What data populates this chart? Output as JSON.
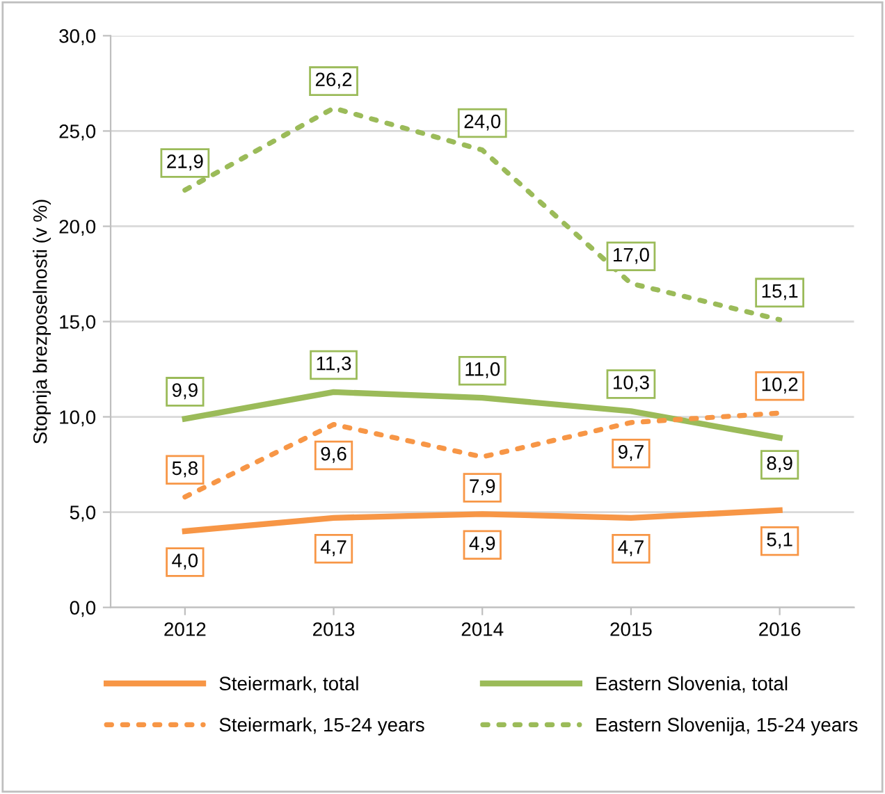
{
  "chart_data": {
    "type": "line",
    "ylabel": "Stopnja brezposelnosti (v %)",
    "categories": [
      "2012",
      "2013",
      "2014",
      "2015",
      "2016"
    ],
    "ylim": [
      0,
      30
    ],
    "yticks": [
      {
        "value": 0,
        "label": "0,0"
      },
      {
        "value": 5,
        "label": "5,0"
      },
      {
        "value": 10,
        "label": "10,0"
      },
      {
        "value": 15,
        "label": "15,0"
      },
      {
        "value": 20,
        "label": "20,0"
      },
      {
        "value": 25,
        "label": "25,0"
      },
      {
        "value": 30,
        "label": "30,0"
      }
    ],
    "grid": "y",
    "legend": "bottom",
    "marker": "none",
    "series": [
      {
        "name": "Steiermark, total",
        "color": "#f79646",
        "line_style": "solid",
        "values": [
          4.0,
          4.7,
          4.9,
          4.7,
          5.1
        ],
        "value_labels": [
          "4,0",
          "4,7",
          "4,9",
          "4,7",
          "5,1"
        ]
      },
      {
        "name": "Eastern Slovenia, total",
        "color": "#9bbb59",
        "line_style": "solid",
        "values": [
          9.9,
          11.3,
          11.0,
          10.3,
          8.9
        ],
        "value_labels": [
          "9,9",
          "11,3",
          "11,0",
          "10,3",
          "8,9"
        ]
      },
      {
        "name": "Steiermark, 15-24 years",
        "color": "#f79646",
        "line_style": "dotted",
        "values": [
          5.8,
          9.6,
          7.9,
          9.7,
          10.2
        ],
        "value_labels": [
          "5,8",
          "9,6",
          "7,9",
          "9,7",
          "10,2"
        ]
      },
      {
        "name": "Eastern Slovenija, 15-24 years",
        "color": "#9bbb59",
        "line_style": "dotted",
        "values": [
          21.9,
          26.2,
          24.0,
          17.0,
          15.1
        ],
        "value_labels": [
          "21,9",
          "26,2",
          "24,0",
          "17,0",
          "15,1"
        ]
      }
    ]
  }
}
